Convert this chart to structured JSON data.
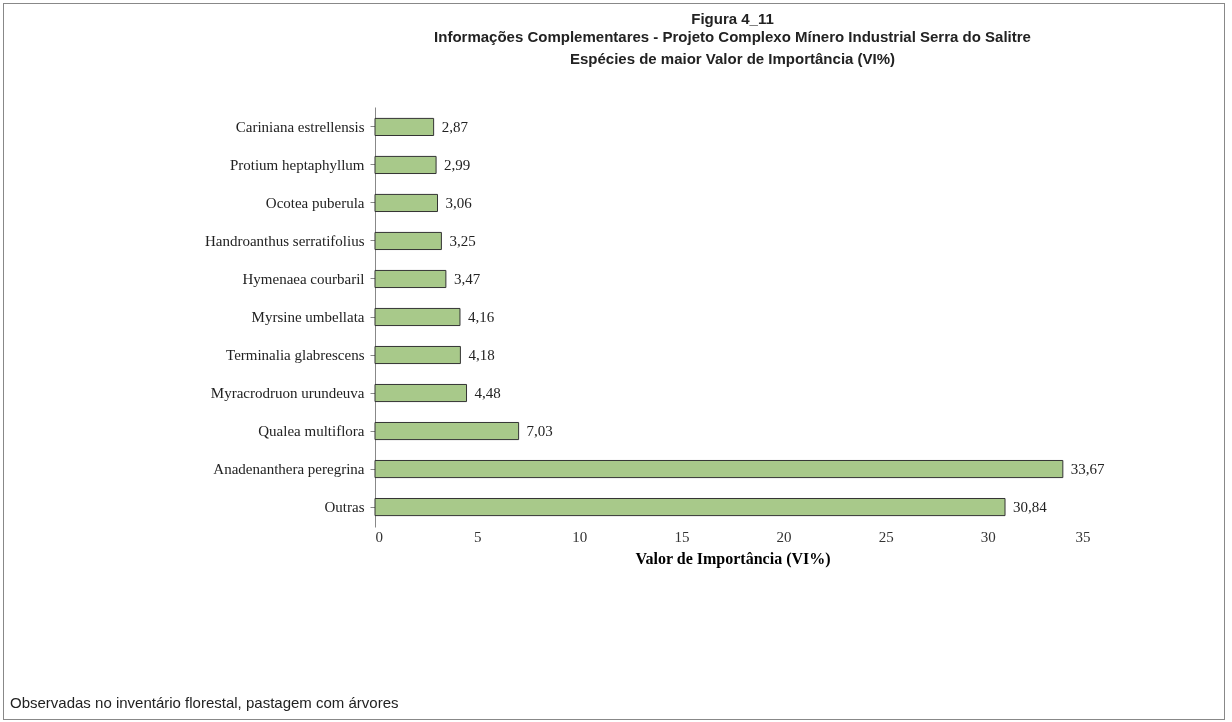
{
  "chart_data": {
    "type": "bar",
    "orientation": "horizontal",
    "title": "Figura 4_11",
    "subtitle": "Informações Complementares - Projeto Complexo Mínero Industrial Serra do Salitre\nEspécies de maior Valor de Importância (VI%)",
    "categories": [
      "Cariniana estrellensis",
      "Protium heptaphyllum",
      "Ocotea puberula",
      "Handroanthus serratifolius",
      "Hymenaea courbaril",
      "Myrsine umbellata",
      "Terminalia glabrescens",
      "Myracrodruon urundeuva",
      "Qualea multiflora",
      "Anadenanthera peregrina",
      "Outras"
    ],
    "values": [
      2.87,
      2.99,
      3.06,
      3.25,
      3.47,
      4.16,
      4.18,
      4.48,
      7.03,
      33.67,
      30.84
    ],
    "value_labels": [
      "2,87",
      "2,99",
      "3,06",
      "3,25",
      "3,47",
      "4,16",
      "4,18",
      "4,48",
      "7,03",
      "33,67",
      "30,84"
    ],
    "color": "#a8c98a",
    "xlim": [
      0,
      35
    ],
    "xticks": [
      0,
      5,
      10,
      15,
      20,
      25,
      30,
      35
    ],
    "xlabel": "Valor de Importância (VI%)",
    "grid": false,
    "annotations": [
      "Observadas no inventário florestal, pastagem com árvores"
    ]
  }
}
